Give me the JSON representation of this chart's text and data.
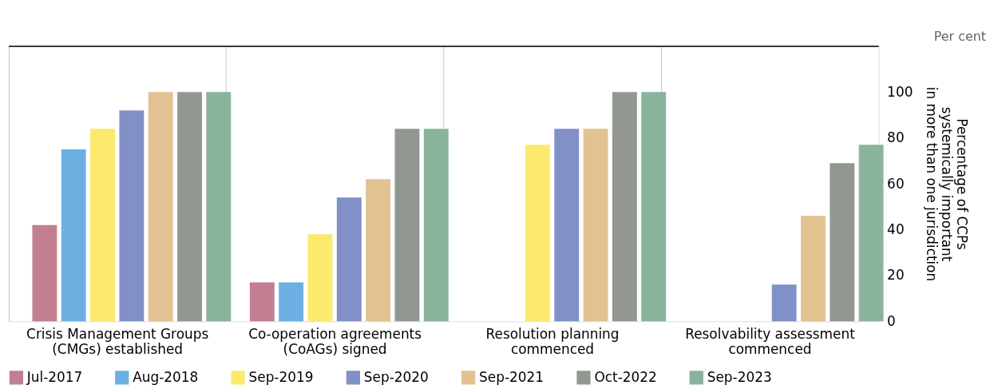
{
  "chart_data": {
    "type": "bar",
    "categories": [
      "Crisis Management Groups\n(CMGs) established",
      "Co-operation agreements\n(CoAGs) signed",
      "Resolution planning\ncommenced",
      "Resolvability assessment\ncommenced"
    ],
    "series": [
      {
        "name": "Jul-2017",
        "color": "#c17f8f",
        "values": [
          42,
          17,
          null,
          null
        ]
      },
      {
        "name": "Aug-2018",
        "color": "#6cb0e2",
        "values": [
          75,
          17,
          null,
          null
        ]
      },
      {
        "name": "Sep-2019",
        "color": "#fde96c",
        "values": [
          84,
          38,
          77,
          null
        ]
      },
      {
        "name": "Sep-2020",
        "color": "#8290c8",
        "values": [
          92,
          54,
          84,
          16
        ]
      },
      {
        "name": "Sep-2021",
        "color": "#e2c291",
        "values": [
          100,
          62,
          84,
          46
        ]
      },
      {
        "name": "Oct-2022",
        "color": "#929891",
        "values": [
          100,
          84,
          100,
          69
        ]
      },
      {
        "name": "Sep-2023",
        "color": "#8ab39c",
        "values": [
          100,
          84,
          100,
          77
        ]
      }
    ],
    "ylim": [
      0,
      120
    ],
    "yticks": [
      0,
      20,
      40,
      60,
      80,
      100
    ],
    "ylabel": "Percentage of CCPs\nsystemically important\nin more than one jurisdiction",
    "annotations": [
      "Per cent"
    ],
    "grid": "x",
    "legend": "bottom"
  }
}
